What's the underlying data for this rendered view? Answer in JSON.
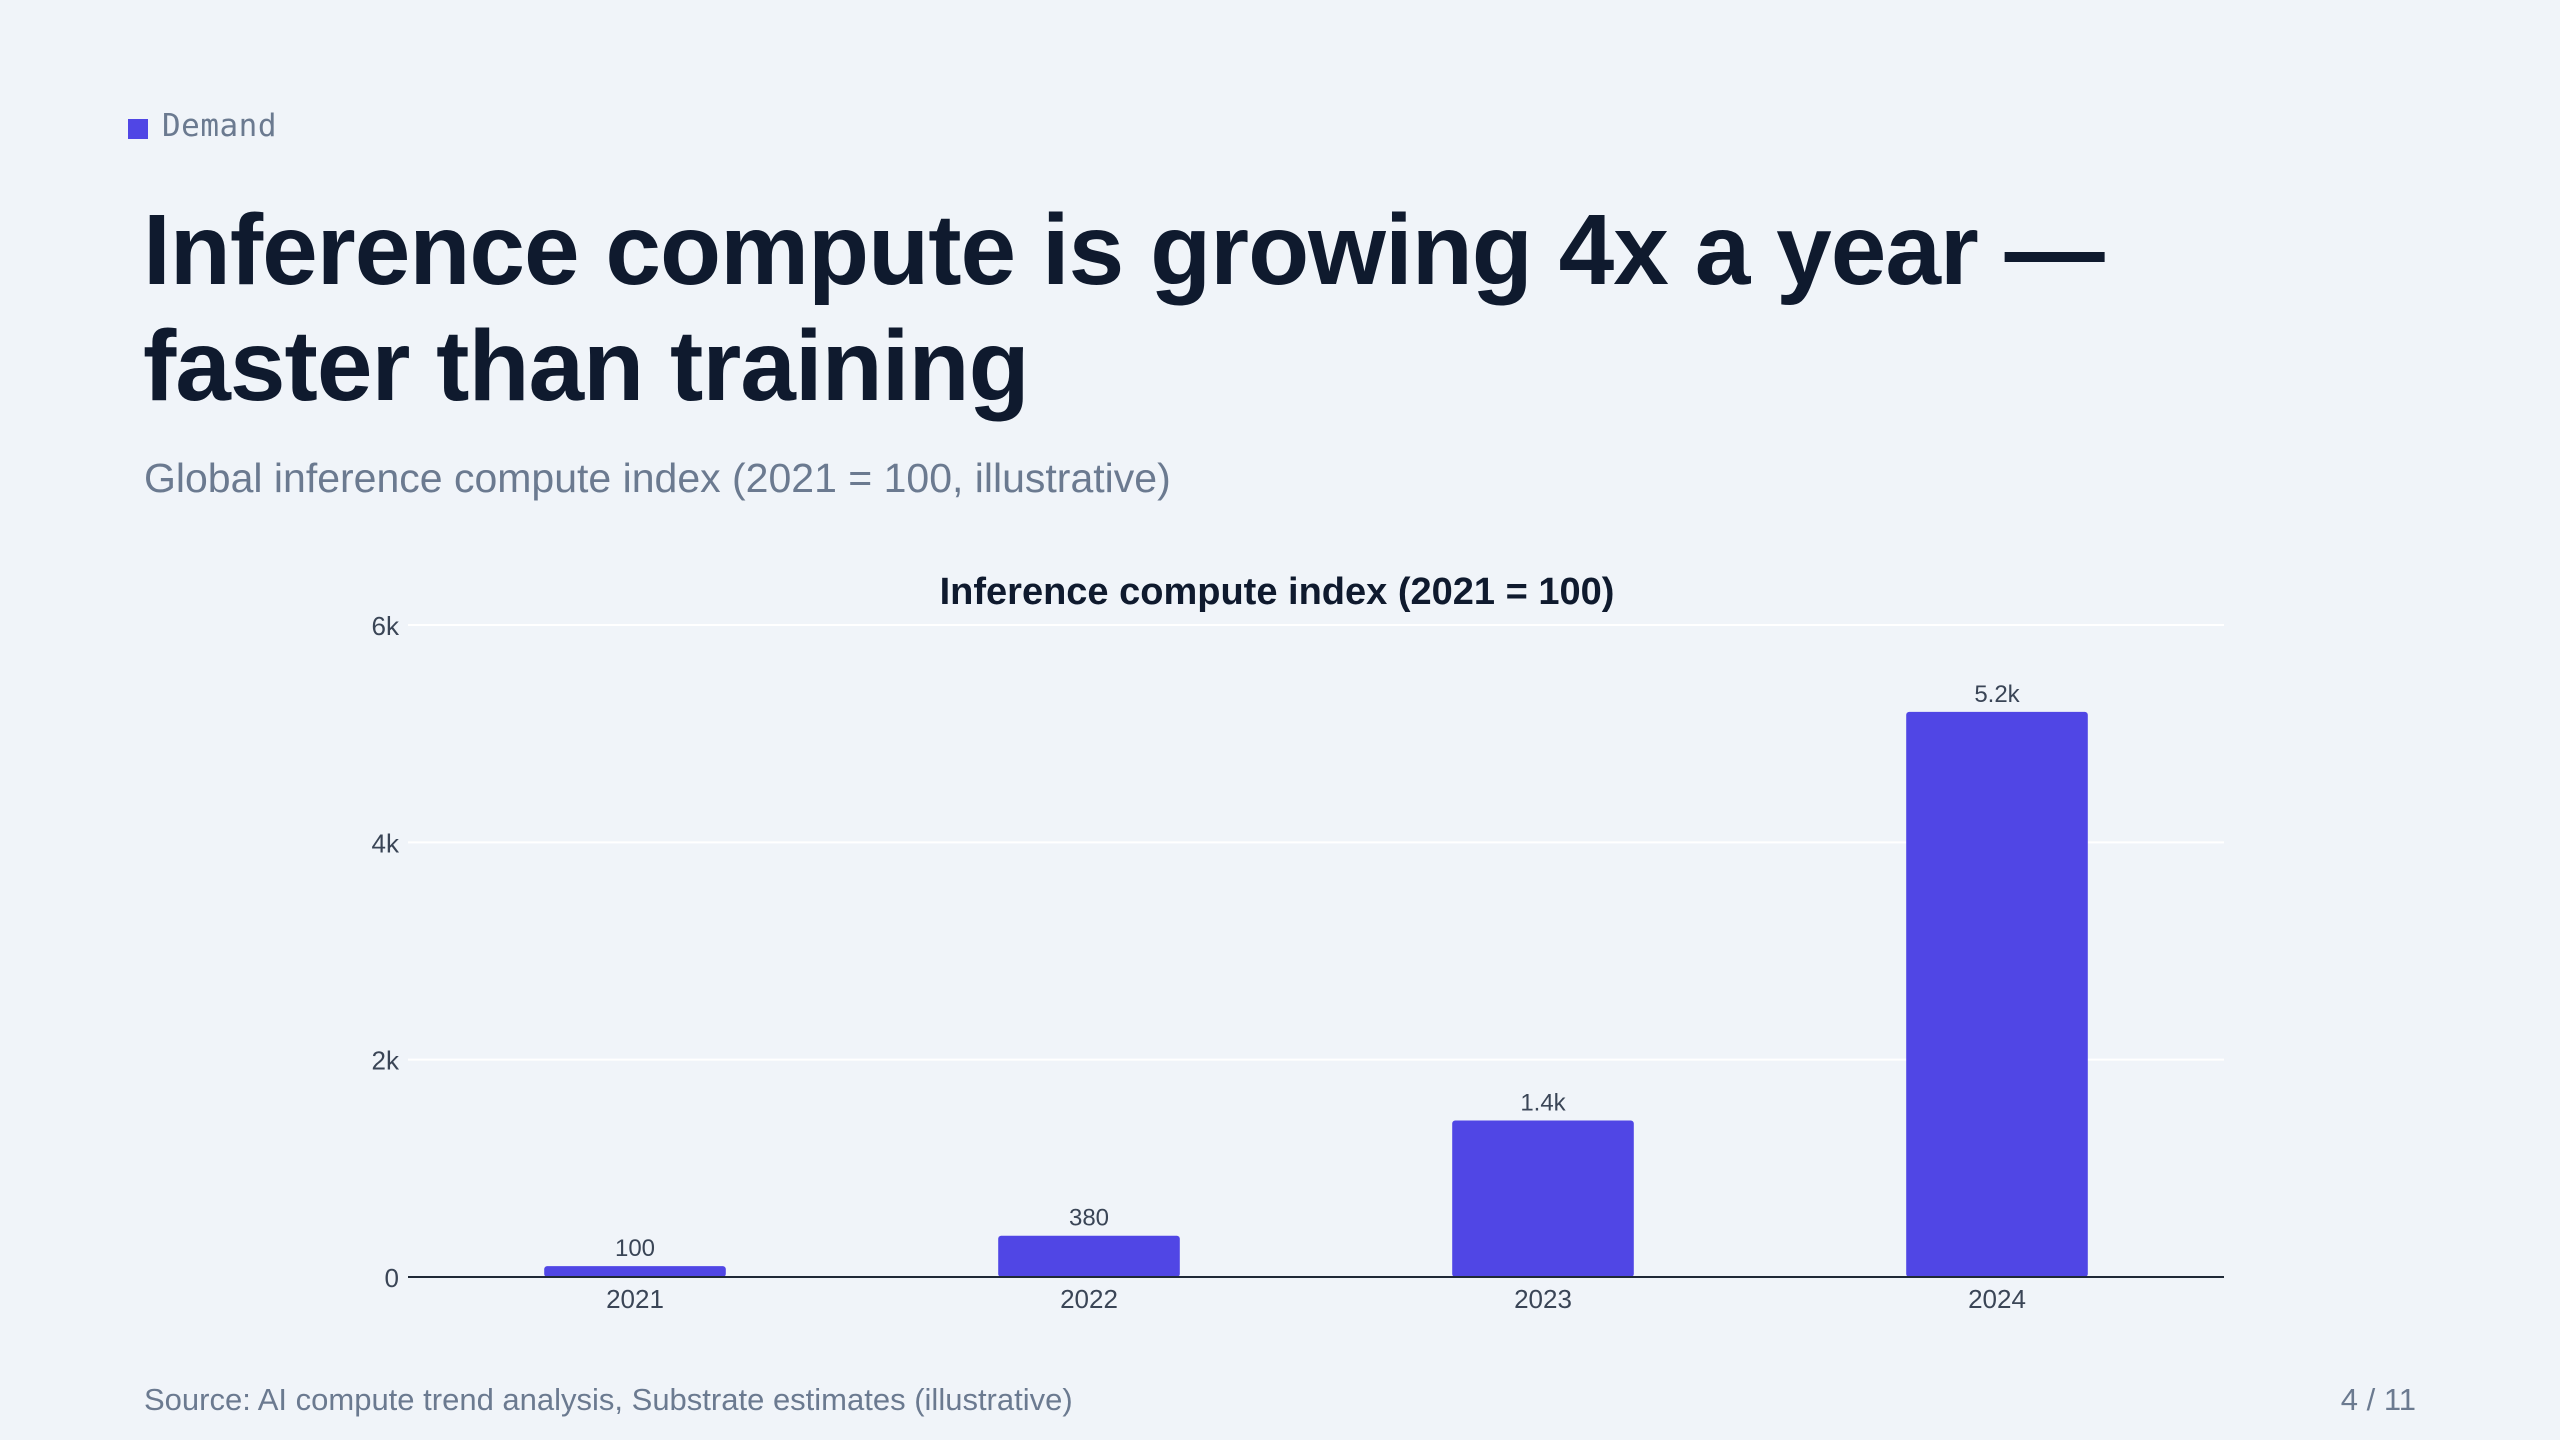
{
  "slide": {
    "eyebrow": "Demand",
    "title": "Inference compute is growing 4x a year — faster than training",
    "subtitle": "Global inference compute index (2021 = 100, illustrative)",
    "source": "Source: AI compute trend analysis, Substrate estimates (illustrative)",
    "page": "4 / 11"
  },
  "colors": {
    "accent": "#5046e5",
    "title": "#0f1a2e",
    "muted": "#6b7a90",
    "background": "#f0f4f9"
  },
  "chart_data": {
    "type": "bar",
    "title": "Inference compute index (2021 = 100)",
    "categories": [
      "2021",
      "2022",
      "2023",
      "2024"
    ],
    "values": [
      100,
      380,
      1440,
      5200
    ],
    "value_labels": [
      "100",
      "380",
      "1.4k",
      "5.2k"
    ],
    "ylim": [
      0,
      6000
    ],
    "yticks": [
      0,
      2000,
      4000,
      6000
    ],
    "ytick_labels": [
      "0",
      "2k",
      "4k",
      "6k"
    ],
    "xlabel": "",
    "ylabel": "",
    "grid": true,
    "legend": "none"
  }
}
